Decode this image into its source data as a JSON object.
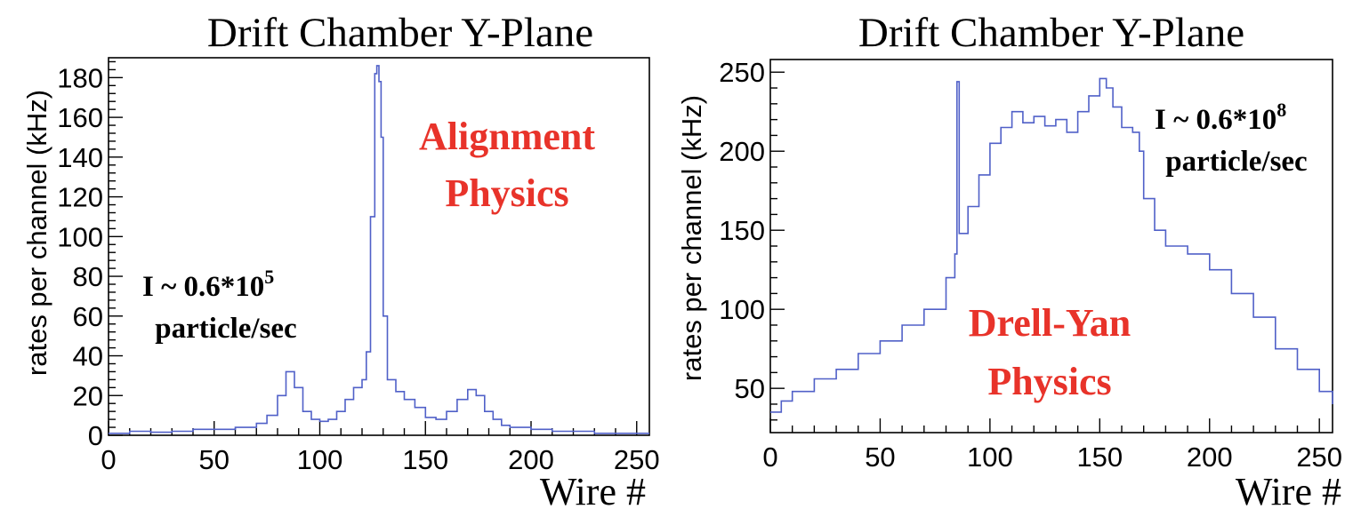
{
  "chart_data": [
    {
      "type": "line",
      "title": "Drift Chamber Y-Plane",
      "xlabel": "Wire #",
      "ylabel": "rates per channel (kHz)",
      "xlim": [
        0,
        256
      ],
      "ylim": [
        0,
        190
      ],
      "xticks": [
        0,
        50,
        100,
        150,
        200,
        250
      ],
      "yticks": [
        0,
        20,
        40,
        60,
        80,
        100,
        120,
        140,
        160,
        180
      ],
      "annotations": {
        "physics_line1": "Alignment",
        "physics_line2": "Physics",
        "intensity_base": "I ~ 0.6*10",
        "intensity_exp": "5",
        "intensity_unit": "particle/sec"
      },
      "series": [
        {
          "color": "#5060c8",
          "points": [
            [
              0,
              1
            ],
            [
              10,
              2
            ],
            [
              20,
              1.5
            ],
            [
              30,
              2
            ],
            [
              40,
              3
            ],
            [
              50,
              3
            ],
            [
              60,
              4
            ],
            [
              70,
              6
            ],
            [
              75,
              10
            ],
            [
              80,
              20
            ],
            [
              84,
              32
            ],
            [
              88,
              24
            ],
            [
              92,
              12
            ],
            [
              96,
              8
            ],
            [
              100,
              7
            ],
            [
              104,
              8
            ],
            [
              108,
              12
            ],
            [
              112,
              18
            ],
            [
              116,
              24
            ],
            [
              120,
              28
            ],
            [
              122,
              42
            ],
            [
              124,
              110
            ],
            [
              126,
              182
            ],
            [
              127,
              186
            ],
            [
              128,
              178
            ],
            [
              129,
              150
            ],
            [
              130,
              60
            ],
            [
              132,
              28
            ],
            [
              136,
              22
            ],
            [
              140,
              18
            ],
            [
              145,
              14
            ],
            [
              150,
              9
            ],
            [
              155,
              8
            ],
            [
              160,
              12
            ],
            [
              165,
              18
            ],
            [
              170,
              23
            ],
            [
              174,
              20
            ],
            [
              178,
              12
            ],
            [
              182,
              8
            ],
            [
              186,
              5
            ],
            [
              190,
              4
            ],
            [
              200,
              3
            ],
            [
              210,
              2
            ],
            [
              220,
              2
            ],
            [
              230,
              1
            ],
            [
              240,
              1
            ],
            [
              250,
              1
            ],
            [
              256,
              1
            ]
          ]
        }
      ]
    },
    {
      "type": "line",
      "title": "Drift Chamber Y-Plane",
      "xlabel": "Wire #",
      "ylabel": "rates per channel (kHz)",
      "xlim": [
        0,
        256
      ],
      "ylim": [
        22,
        258
      ],
      "xticks": [
        0,
        50,
        100,
        150,
        200,
        250
      ],
      "yticks": [
        50,
        100,
        150,
        200,
        250
      ],
      "annotations": {
        "physics_line1": "Drell-Yan",
        "physics_line2": "Physics",
        "intensity_base": "I ~ 0.6*10",
        "intensity_exp": "8",
        "intensity_unit": "particle/sec"
      },
      "series": [
        {
          "color": "#5060c8",
          "points": [
            [
              0,
              35
            ],
            [
              5,
              42
            ],
            [
              10,
              48
            ],
            [
              20,
              56
            ],
            [
              30,
              62
            ],
            [
              40,
              72
            ],
            [
              50,
              80
            ],
            [
              60,
              90
            ],
            [
              70,
              100
            ],
            [
              80,
              120
            ],
            [
              84,
              135
            ],
            [
              85,
              244
            ],
            [
              86,
              148
            ],
            [
              90,
              165
            ],
            [
              95,
              185
            ],
            [
              100,
              205
            ],
            [
              105,
              215
            ],
            [
              110,
              225
            ],
            [
              115,
              218
            ],
            [
              120,
              222
            ],
            [
              125,
              216
            ],
            [
              130,
              220
            ],
            [
              135,
              212
            ],
            [
              140,
              225
            ],
            [
              145,
              235
            ],
            [
              150,
              246
            ],
            [
              153,
              240
            ],
            [
              156,
              228
            ],
            [
              160,
              215
            ],
            [
              165,
              212
            ],
            [
              168,
              200
            ],
            [
              170,
              170
            ],
            [
              175,
              150
            ],
            [
              180,
              140
            ],
            [
              190,
              135
            ],
            [
              200,
              125
            ],
            [
              210,
              110
            ],
            [
              220,
              95
            ],
            [
              230,
              75
            ],
            [
              240,
              62
            ],
            [
              250,
              48
            ],
            [
              256,
              40
            ]
          ]
        }
      ]
    }
  ]
}
